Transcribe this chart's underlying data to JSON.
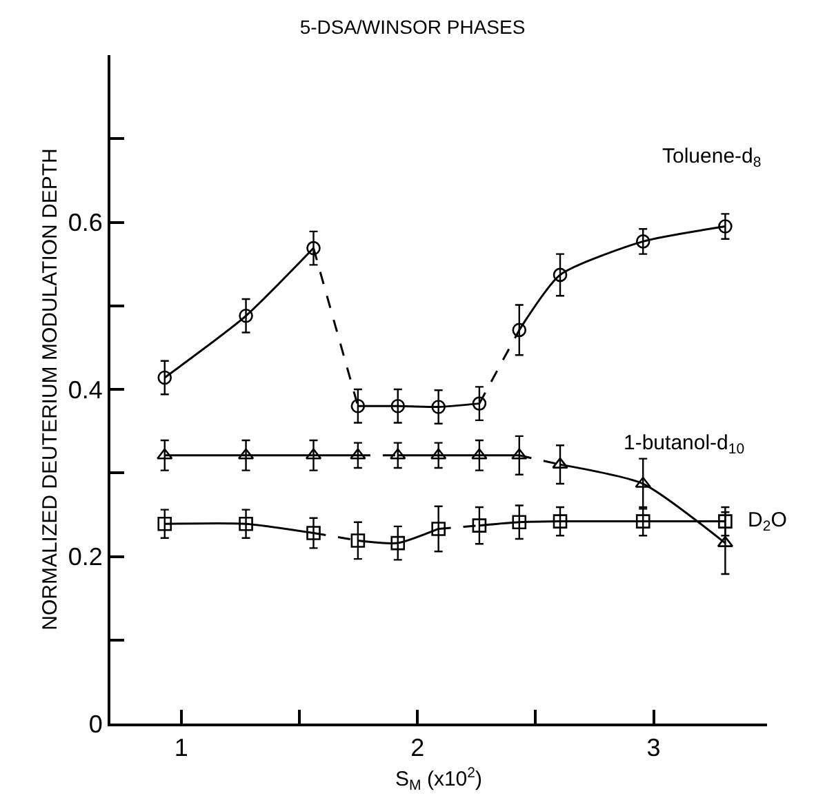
{
  "chart_data": {
    "type": "scatter",
    "title": "5-DSA/WINSOR PHASES",
    "xlabel": "S$_{M}$ (x10$^{2}$)",
    "ylabel": "NORMALIZED DEUTERIUM MODULATION DEPTH",
    "xlim": [
      0.7,
      3.48
    ],
    "xticks": [
      1,
      {
        "value": 1.5,
        "label": null
      },
      2,
      {
        "value": 2.5,
        "label": null
      },
      3
    ],
    "ylim": [
      0,
      0.8
    ],
    "yticks": [
      0,
      {
        "value": 0.1,
        "label": null
      },
      {
        "value": 0.2,
        "label": "0.2"
      },
      {
        "value": 0.3,
        "label": null
      },
      {
        "value": 0.4,
        "label": "0.4"
      },
      {
        "value": 0.5,
        "label": null
      },
      {
        "value": 0.6,
        "label": "0.6"
      },
      {
        "value": 0.7,
        "label": null
      }
    ],
    "series": [
      {
        "name": "Toluene-d$_{8}$",
        "marker": "circle",
        "color": "#000000",
        "x": [
          0.93,
          1.274,
          1.56,
          1.748,
          1.917,
          2.089,
          2.262,
          2.431,
          2.604,
          2.955,
          3.303
        ],
        "values": [
          0.414,
          0.488,
          0.569,
          0.38,
          0.38,
          0.379,
          0.383,
          0.471,
          0.537,
          0.577,
          0.595
        ],
        "errors": [
          0.02,
          0.02,
          0.02,
          0.02,
          0.02,
          0.02,
          0.02,
          0.03,
          0.025,
          0.015,
          0.015
        ]
      },
      {
        "name": "1-butanol-d$_{10}$",
        "marker": "triangle",
        "color": "#000000",
        "x": [
          0.93,
          1.274,
          1.56,
          1.748,
          1.917,
          2.089,
          2.262,
          2.431,
          2.604,
          2.955,
          3.303
        ],
        "values": [
          0.321,
          0.321,
          0.321,
          0.321,
          0.321,
          0.321,
          0.321,
          0.321,
          0.31,
          0.287,
          0.216
        ],
        "errors": [
          0.018,
          0.018,
          0.018,
          0.015,
          0.015,
          0.015,
          0.018,
          0.023,
          0.023,
          0.03,
          0.037
        ]
      },
      {
        "name": "D$_{2}$O",
        "marker": "square",
        "color": "#000000",
        "x": [
          0.93,
          1.274,
          1.56,
          1.748,
          1.917,
          2.089,
          2.262,
          2.431,
          2.604,
          2.955,
          3.303
        ],
        "values": [
          0.239,
          0.239,
          0.228,
          0.219,
          0.216,
          0.233,
          0.237,
          0.241,
          0.242,
          0.242,
          0.242
        ],
        "errors": [
          0.017,
          0.017,
          0.018,
          0.022,
          0.02,
          0.027,
          0.022,
          0.02,
          0.017,
          0.017,
          0.017
        ]
      },
      {
        "type": "line",
        "line_style": "solid",
        "color": "#000000",
        "x": [
          0.93,
          1.274,
          1.56
        ],
        "values": [
          0.414,
          0.488,
          0.569
        ]
      },
      {
        "type": "line",
        "line_style": "dashed",
        "color": "#000000",
        "x": [
          1.56,
          1.748
        ],
        "values": [
          0.569,
          0.38
        ]
      },
      {
        "type": "line",
        "line_style": "solid",
        "color": "#000000",
        "x": [
          1.748,
          1.917,
          2.089,
          2.262
        ],
        "values": [
          0.38,
          0.38,
          0.379,
          0.383
        ]
      },
      {
        "type": "line",
        "line_style": "dashed",
        "color": "#000000",
        "x": [
          2.262,
          2.431
        ],
        "values": [
          0.383,
          0.471
        ]
      },
      {
        "type": "line",
        "line_style": "solid",
        "color": "#000000",
        "x": [
          2.431,
          2.604,
          2.955,
          3.303
        ],
        "values": [
          0.471,
          0.537,
          0.577,
          0.595
        ]
      },
      {
        "type": "line",
        "line_style": "solid",
        "color": "#000000",
        "x": [
          0.93,
          1.274,
          1.56,
          1.748
        ],
        "values": [
          0.321,
          0.321,
          0.321,
          0.321
        ]
      },
      {
        "type": "line",
        "line_style": "dashed",
        "color": "#000000",
        "x": [
          1.748,
          1.917
        ],
        "values": [
          0.321,
          0.321
        ]
      },
      {
        "type": "line",
        "line_style": "solid",
        "color": "#000000",
        "x": [
          1.917,
          2.089,
          2.262,
          2.431
        ],
        "values": [
          0.321,
          0.321,
          0.321,
          0.321
        ]
      },
      {
        "type": "line",
        "line_style": "dashed",
        "color": "#000000",
        "x": [
          2.431,
          2.604
        ],
        "values": [
          0.321,
          0.31
        ]
      },
      {
        "type": "line",
        "line_style": "solid",
        "color": "#000000",
        "x": [
          2.604,
          2.955,
          3.303
        ],
        "values": [
          0.31,
          0.287,
          0.216
        ]
      },
      {
        "type": "line",
        "line_style": "solid",
        "color": "#000000",
        "x": [
          0.93,
          1.274,
          1.56
        ],
        "values": [
          0.239,
          0.239,
          0.228
        ]
      },
      {
        "type": "line",
        "line_style": "dashed",
        "color": "#000000",
        "x": [
          1.56,
          1.748
        ],
        "values": [
          0.228,
          0.219
        ]
      },
      {
        "type": "line",
        "line_style": "solid",
        "color": "#000000",
        "x": [
          1.748,
          1.917,
          2.089
        ],
        "values": [
          0.219,
          0.216,
          0.233
        ]
      },
      {
        "type": "line",
        "line_style": "dashed",
        "color": "#000000",
        "x": [
          2.089,
          2.262
        ],
        "values": [
          0.233,
          0.237
        ]
      },
      {
        "type": "line",
        "line_style": "solid",
        "color": "#000000",
        "x": [
          2.262,
          2.431,
          2.604,
          2.955,
          3.303
        ],
        "values": [
          0.237,
          0.241,
          0.242,
          0.242,
          0.242
        ]
      }
    ]
  }
}
